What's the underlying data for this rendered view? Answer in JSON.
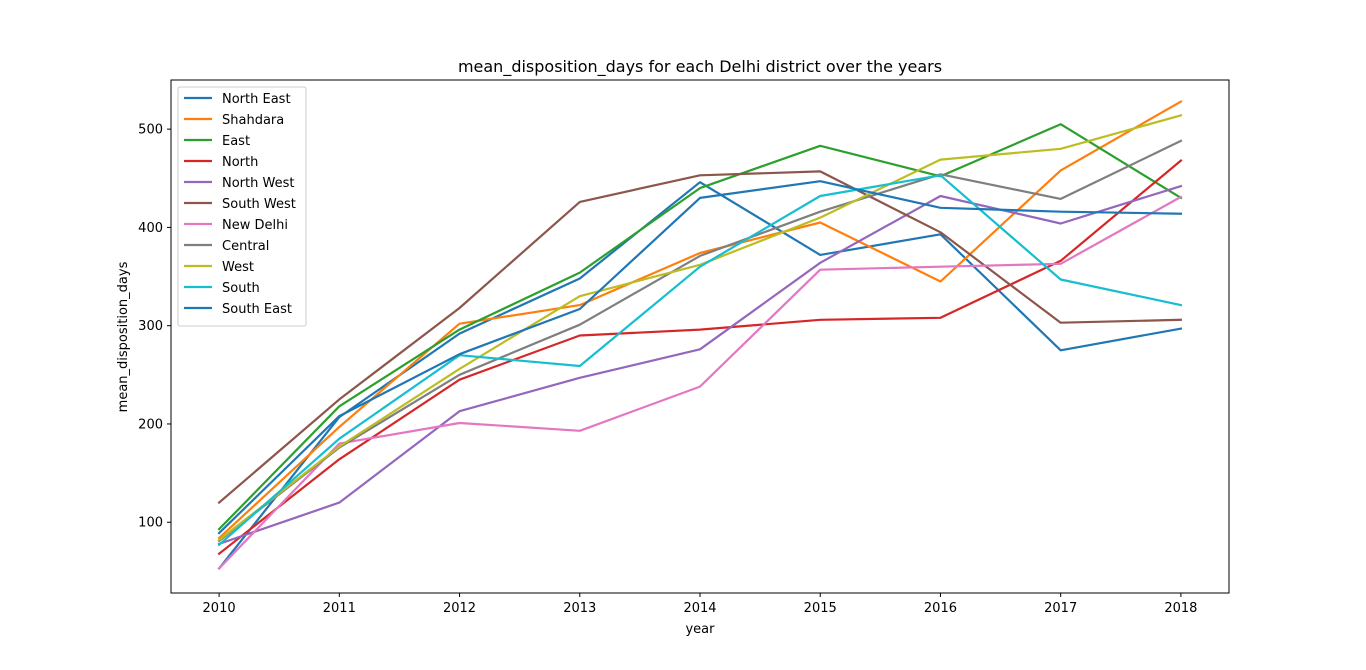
{
  "chart_data": {
    "type": "line",
    "title": "mean_disposition_days for each Delhi district over the years",
    "xlabel": "year",
    "ylabel": "mean_disposition_days",
    "x": [
      2010,
      2011,
      2012,
      2013,
      2014,
      2015,
      2016,
      2017,
      2018
    ],
    "xlim": [
      2009.6,
      2018.4
    ],
    "ylim": [
      28,
      550
    ],
    "yticks": [
      100,
      200,
      300,
      400,
      500
    ],
    "grid": false,
    "legend_position": "upper-left",
    "series": [
      {
        "name": "North East",
        "color": "#1f77b4",
        "values": [
          53,
          207,
          292,
          348,
          446,
          372,
          393,
          275,
          297
        ]
      },
      {
        "name": "Shahdara",
        "color": "#ff7f0e",
        "values": [
          84,
          197,
          302,
          321,
          374,
          405,
          345,
          458,
          528
        ]
      },
      {
        "name": "East",
        "color": "#2ca02c",
        "values": [
          93,
          218,
          296,
          354,
          440,
          483,
          452,
          505,
          430
        ]
      },
      {
        "name": "North",
        "color": "#d62728",
        "values": [
          68,
          164,
          245,
          290,
          296,
          306,
          308,
          366,
          468
        ]
      },
      {
        "name": "North West",
        "color": "#9467bd",
        "values": [
          78,
          120,
          213,
          247,
          276,
          364,
          432,
          404,
          442
        ]
      },
      {
        "name": "South West",
        "color": "#8c564b",
        "values": [
          120,
          225,
          318,
          426,
          453,
          457,
          395,
          303,
          306
        ]
      },
      {
        "name": "New Delhi",
        "color": "#e377c2",
        "values": [
          53,
          180,
          201,
          193,
          238,
          357,
          360,
          363,
          431
        ]
      },
      {
        "name": "Central",
        "color": "#7f7f7f",
        "values": [
          81,
          176,
          250,
          301,
          371,
          416,
          454,
          429,
          488
        ]
      },
      {
        "name": "West",
        "color": "#bcbd22",
        "values": [
          82,
          177,
          256,
          330,
          362,
          410,
          469,
          480,
          514
        ]
      },
      {
        "name": "South",
        "color": "#17becf",
        "values": [
          77,
          185,
          270,
          259,
          360,
          432,
          453,
          347,
          321
        ]
      },
      {
        "name": "South East",
        "color": "#1f77b4",
        "values": [
          89,
          208,
          271,
          317,
          430,
          447,
          420,
          416,
          414
        ]
      }
    ]
  }
}
